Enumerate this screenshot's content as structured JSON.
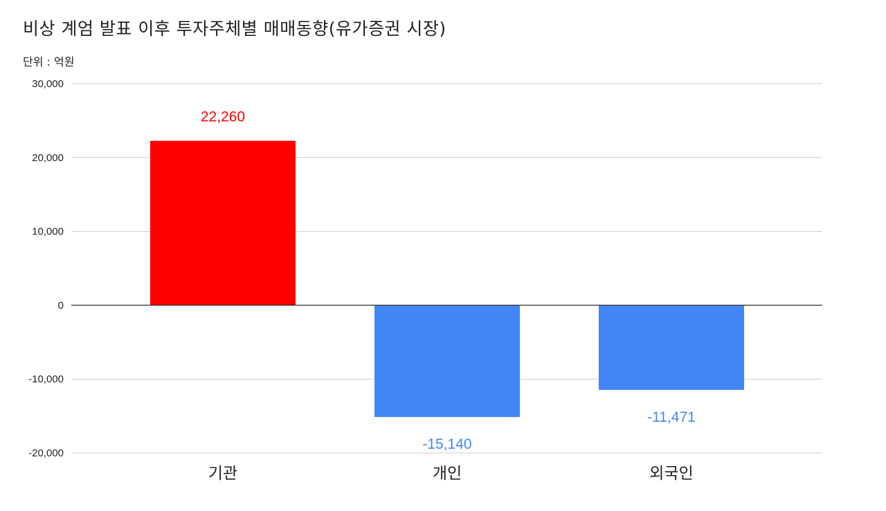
{
  "chart_data": {
    "type": "bar",
    "title": "비상 계엄 발표 이후 투자주체별 매매동향(유가증권 시장)",
    "subtitle": "단위 : 억원",
    "categories": [
      "기관",
      "개인",
      "외국인"
    ],
    "values": [
      22260,
      -15140,
      -11471
    ],
    "data_labels": [
      "22,260",
      "-15,140",
      "-11,471"
    ],
    "ylim": [
      -20000,
      30000
    ],
    "yticks": [
      30000,
      20000,
      10000,
      0,
      -10000,
      -20000
    ],
    "ytick_labels": [
      "30,000",
      "20,000",
      "10,000",
      "0",
      "-10,000",
      "-20,000"
    ],
    "grid": true,
    "legend": "none",
    "colors": {
      "positive": "#ff0000",
      "negative": "#4285f4",
      "gridline": "#cccccc",
      "zeroline": "#333333"
    }
  }
}
